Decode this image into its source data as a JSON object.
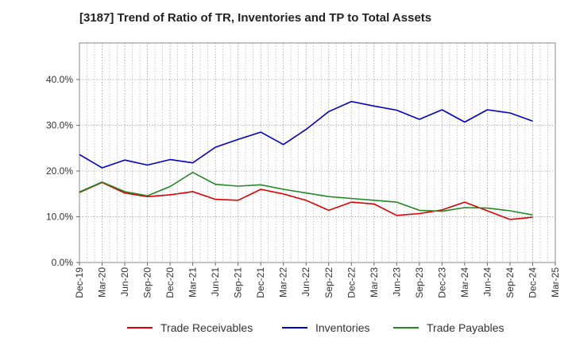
{
  "title": "[3187]  Trend of Ratio of TR, Inventories and TP to Total Assets",
  "chart_data": {
    "type": "line",
    "x": [
      "Dec-19",
      "Mar-20",
      "Jun-20",
      "Sep-20",
      "Dec-20",
      "Mar-21",
      "Jun-21",
      "Sep-21",
      "Dec-21",
      "Mar-22",
      "Jun-22",
      "Sep-22",
      "Dec-22",
      "Mar-23",
      "Jun-23",
      "Sep-23",
      "Dec-23",
      "Mar-24",
      "Jun-24",
      "Sep-24",
      "Dec-24"
    ],
    "x_ticks": [
      "Dec-19",
      "Mar-20",
      "Jun-20",
      "Sep-20",
      "Dec-20",
      "Mar-21",
      "Jun-21",
      "Sep-21",
      "Dec-21",
      "Mar-22",
      "Jun-22",
      "Sep-22",
      "Dec-22",
      "Mar-23",
      "Jun-23",
      "Sep-23",
      "Dec-23",
      "Mar-24",
      "Jun-24",
      "Sep-24",
      "Dec-24",
      "Mar-25"
    ],
    "y_ticks": [
      "0.0%",
      "10.0%",
      "20.0%",
      "30.0%",
      "40.0%"
    ],
    "ylim": [
      0,
      48
    ],
    "grid": true,
    "legend_position": "bottom",
    "series": [
      {
        "name": "Trade Receivables",
        "color": "#e00000",
        "values": [
          15.3,
          17.5,
          15.2,
          14.4,
          14.8,
          15.5,
          13.8,
          13.6,
          16.0,
          15.0,
          13.6,
          11.4,
          13.2,
          12.8,
          10.3,
          10.7,
          11.5,
          13.2,
          11.3,
          9.4,
          9.9
        ]
      },
      {
        "name": "Inventories",
        "color": "#0000cc",
        "values": [
          23.6,
          20.7,
          22.4,
          21.3,
          22.5,
          21.8,
          25.2,
          26.9,
          28.5,
          25.8,
          29.1,
          33.0,
          35.2,
          34.2,
          33.3,
          31.3,
          33.4,
          30.7,
          33.4,
          32.7,
          30.9
        ]
      },
      {
        "name": "Trade Payables",
        "color": "#228822",
        "values": [
          15.4,
          17.6,
          15.5,
          14.6,
          16.6,
          19.7,
          17.1,
          16.7,
          17.0,
          16.0,
          15.2,
          14.4,
          14.0,
          13.6,
          13.2,
          11.4,
          11.2,
          12.0,
          11.9,
          11.3,
          10.4
        ]
      }
    ]
  }
}
